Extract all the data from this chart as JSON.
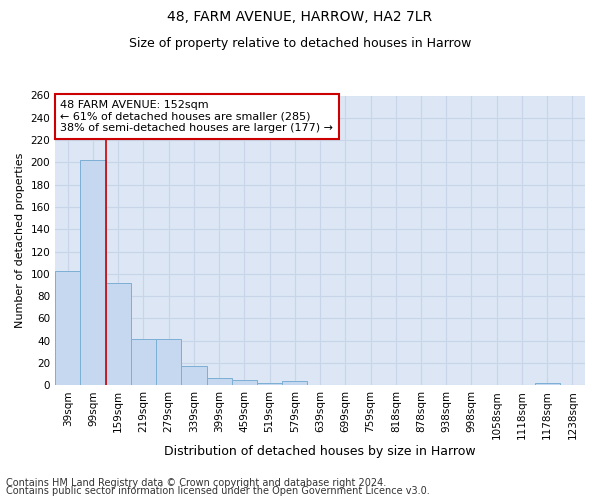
{
  "title1": "48, FARM AVENUE, HARROW, HA2 7LR",
  "title2": "Size of property relative to detached houses in Harrow",
  "xlabel": "Distribution of detached houses by size in Harrow",
  "ylabel": "Number of detached properties",
  "categories": [
    "39sqm",
    "99sqm",
    "159sqm",
    "219sqm",
    "279sqm",
    "339sqm",
    "399sqm",
    "459sqm",
    "519sqm",
    "579sqm",
    "639sqm",
    "699sqm",
    "759sqm",
    "818sqm",
    "878sqm",
    "938sqm",
    "998sqm",
    "1058sqm",
    "1118sqm",
    "1178sqm",
    "1238sqm"
  ],
  "values": [
    103,
    202,
    92,
    42,
    42,
    17,
    7,
    5,
    2,
    4,
    0,
    0,
    0,
    0,
    0,
    0,
    0,
    0,
    0,
    2,
    0
  ],
  "bar_color": "#c5d8ef",
  "bar_edge_color": "#7bafd4",
  "grid_color": "#c8d4e8",
  "background_color": "#dce6f5",
  "vline_color": "#cc0000",
  "vline_x": 1.5,
  "annotation_line1": "48 FARM AVENUE: 152sqm",
  "annotation_line2": "← 61% of detached houses are smaller (285)",
  "annotation_line3": "38% of semi-detached houses are larger (177) →",
  "annotation_box_color": "white",
  "annotation_box_edge_color": "#cc0000",
  "footnote1": "Contains HM Land Registry data © Crown copyright and database right 2024.",
  "footnote2": "Contains public sector information licensed under the Open Government Licence v3.0.",
  "ylim": [
    0,
    260
  ],
  "yticks": [
    0,
    20,
    40,
    60,
    80,
    100,
    120,
    140,
    160,
    180,
    200,
    220,
    240,
    260
  ],
  "title1_fontsize": 10,
  "title2_fontsize": 9,
  "xlabel_fontsize": 9,
  "ylabel_fontsize": 8,
  "tick_fontsize": 7.5,
  "annot_fontsize": 8,
  "footnote_fontsize": 7
}
